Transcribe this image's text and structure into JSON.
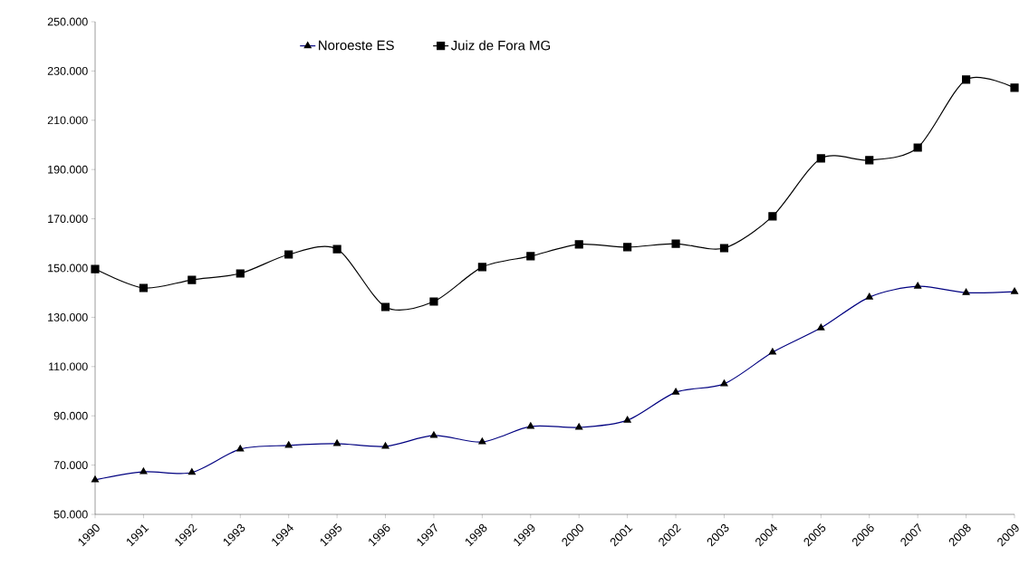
{
  "chart_data": {
    "type": "line",
    "categories": [
      "1990",
      "1991",
      "1992",
      "1993",
      "1994",
      "1995",
      "1996",
      "1997",
      "1998",
      "1999",
      "2000",
      "2001",
      "2002",
      "2003",
      "2004",
      "2005",
      "2006",
      "2007",
      "2008",
      "2009"
    ],
    "series": [
      {
        "name": "Noroeste ES",
        "color": "#000080",
        "marker": "triangle",
        "values": [
          64000,
          67300,
          67000,
          76500,
          78000,
          78700,
          77600,
          82000,
          79400,
          85700,
          85300,
          88200,
          99600,
          103000,
          115800,
          125700,
          138200,
          142600,
          140000,
          140400
        ]
      },
      {
        "name": "Juiz de Fora MG",
        "color": "#000000",
        "marker": "square",
        "values": [
          149600,
          141900,
          145200,
          147800,
          155500,
          157700,
          134200,
          136400,
          150400,
          154800,
          159600,
          158500,
          159900,
          158100,
          171000,
          194500,
          193800,
          198900,
          226500,
          223200
        ]
      }
    ],
    "ylim": [
      50000,
      250000
    ],
    "yticks": [
      {
        "value": 50000,
        "label": "50.000"
      },
      {
        "value": 70000,
        "label": "70.000"
      },
      {
        "value": 90000,
        "label": "90.000"
      },
      {
        "value": 110000,
        "label": "110.000"
      },
      {
        "value": 130000,
        "label": "130.000"
      },
      {
        "value": 150000,
        "label": "150.000"
      },
      {
        "value": 170000,
        "label": "170.000"
      },
      {
        "value": 190000,
        "label": "190.000"
      },
      {
        "value": 210000,
        "label": "210.000"
      },
      {
        "value": 230000,
        "label": "230.000"
      },
      {
        "value": 250000,
        "label": "250.000"
      }
    ],
    "grid": false,
    "legend": "top"
  }
}
